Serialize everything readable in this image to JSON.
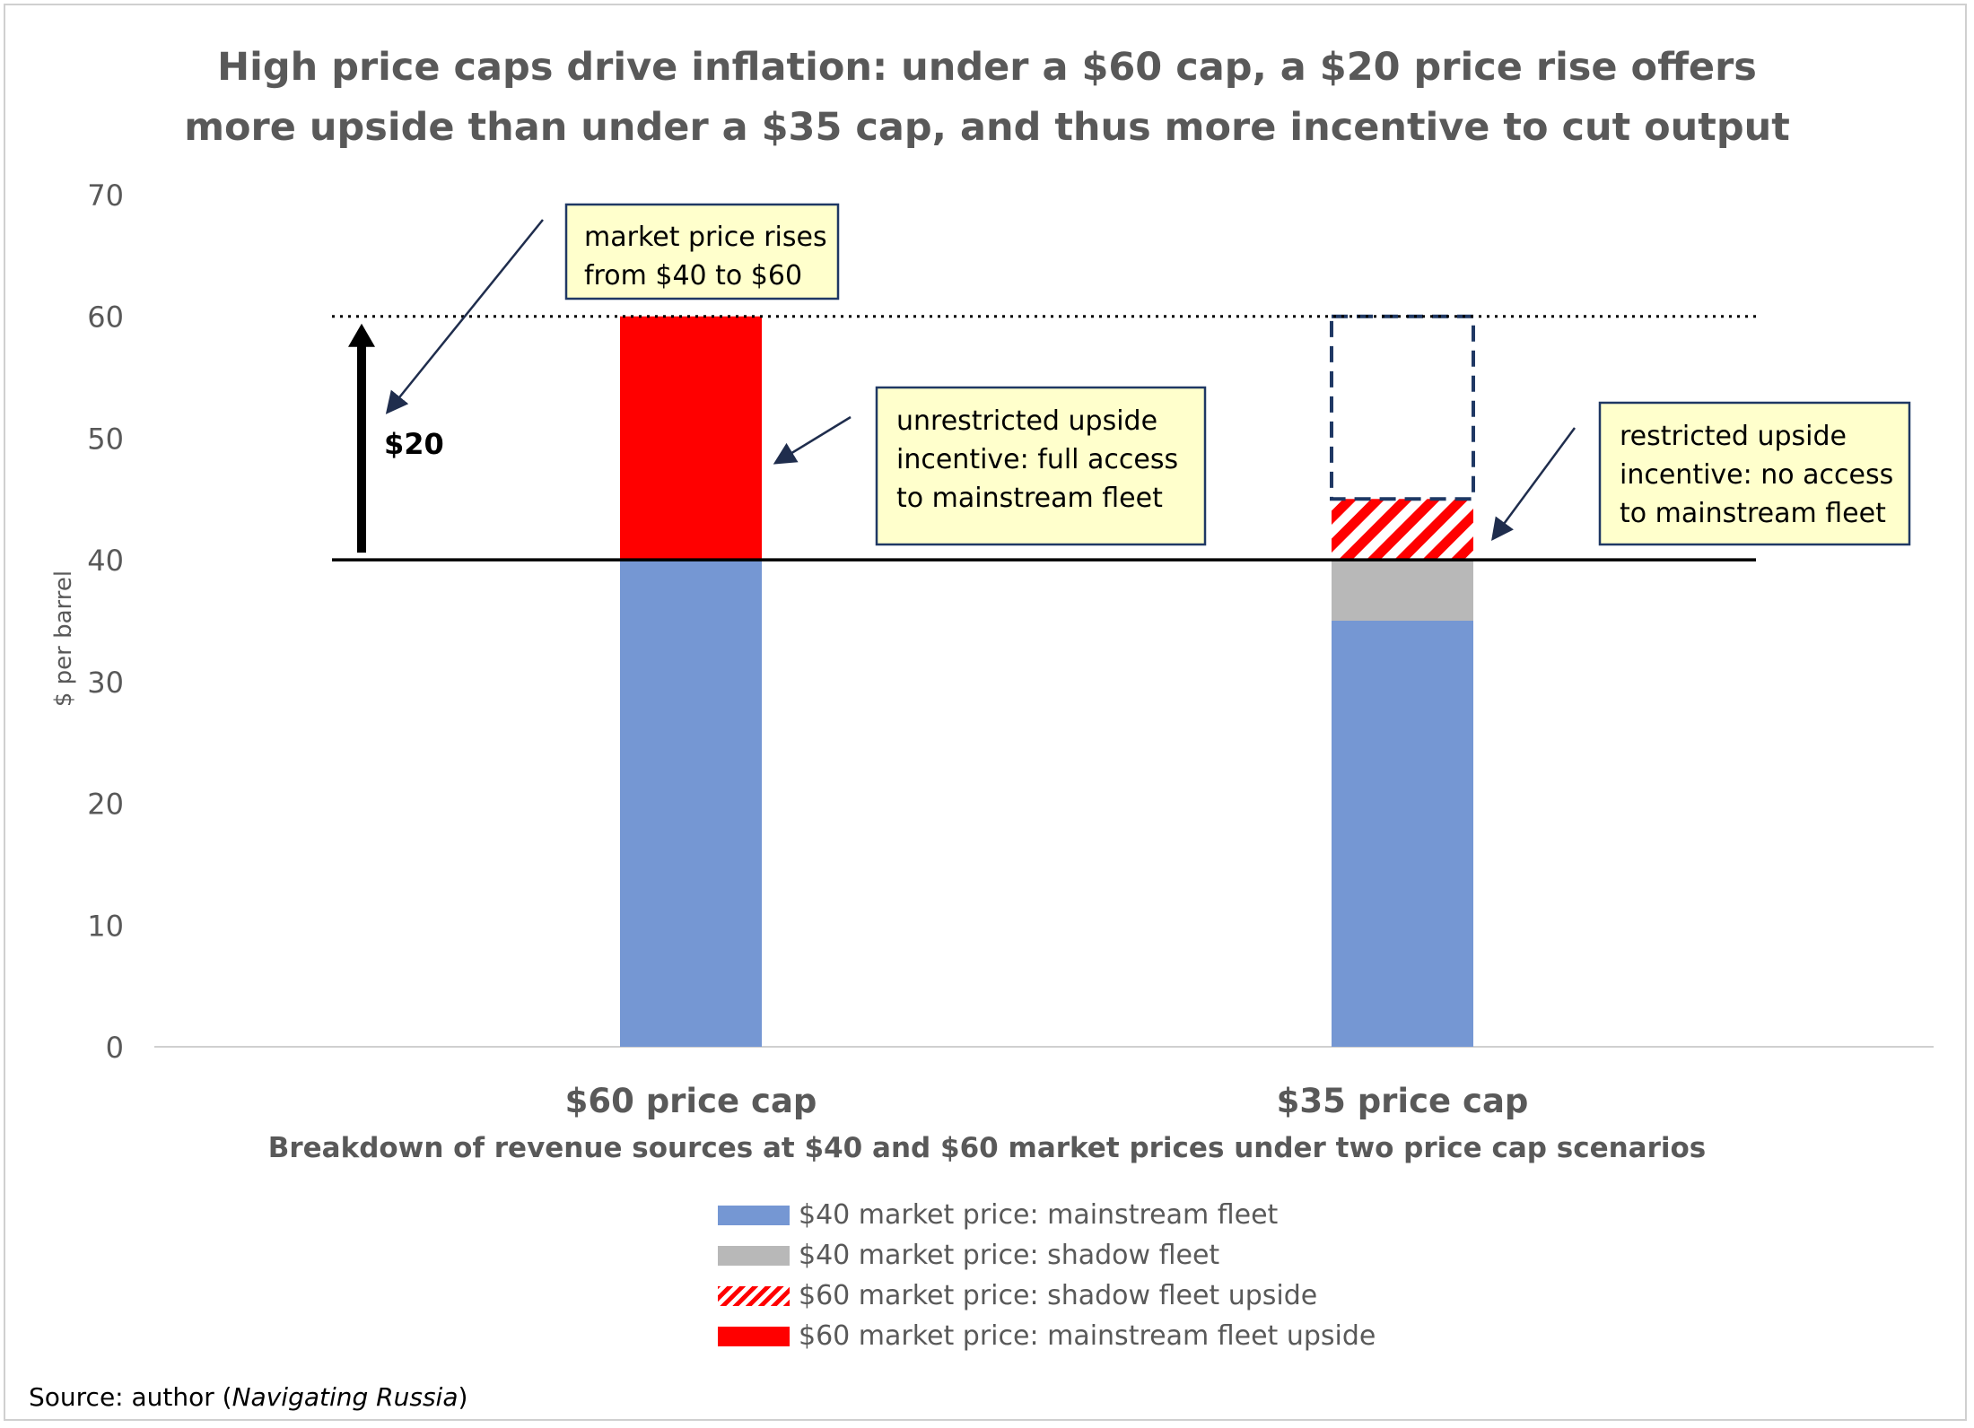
{
  "chart_data": {
    "type": "bar",
    "stacked": true,
    "title": [
      "High price caps drive inflation: under a $60 cap, a $20 price rise offers",
      "more upside than under a $35 cap, and thus more incentive to cut output"
    ],
    "categories": [
      "$60 price cap",
      "$35 price cap"
    ],
    "xlabel": "Breakdown of revenue sources at $40 and $60 market prices under two price cap scenarios",
    "ylabel": "$ per barrel",
    "ylim": [
      0,
      70
    ],
    "yticks": [
      0,
      10,
      20,
      30,
      40,
      50,
      60,
      70
    ],
    "grid": false,
    "legend_position": "bottom",
    "series": [
      {
        "name": "$40 market price: mainstream fleet",
        "values": [
          40,
          35
        ],
        "color": "#7597d3",
        "pattern": "solid"
      },
      {
        "name": "$40 market price: shadow fleet",
        "values": [
          0,
          5
        ],
        "color": "#b8b8b8",
        "pattern": "solid"
      },
      {
        "name": "$60 market price: shadow fleet upside",
        "values": [
          0,
          5
        ],
        "color": "#ff0000",
        "pattern": "hatch"
      },
      {
        "name": "$60 market price: mainstream fleet upside",
        "values": [
          20,
          0
        ],
        "color": "#ff0000",
        "pattern": "solid"
      }
    ],
    "reference_lines": {
      "dotted": 60,
      "solid": 40
    },
    "dashed_outline": {
      "category_index": 1,
      "from": 45,
      "to": 60
    },
    "arrow_label": "$20",
    "annotations": [
      [
        "market price rises",
        "from $40 to $60"
      ],
      [
        "unrestricted upside",
        "incentive: full access",
        "to mainstream fleet"
      ],
      [
        "restricted upside",
        "incentive: no access",
        "to mainstream fleet"
      ]
    ]
  },
  "source": {
    "prefix": "Source: author (",
    "italic": "Navigating Russia",
    "suffix": ")"
  }
}
